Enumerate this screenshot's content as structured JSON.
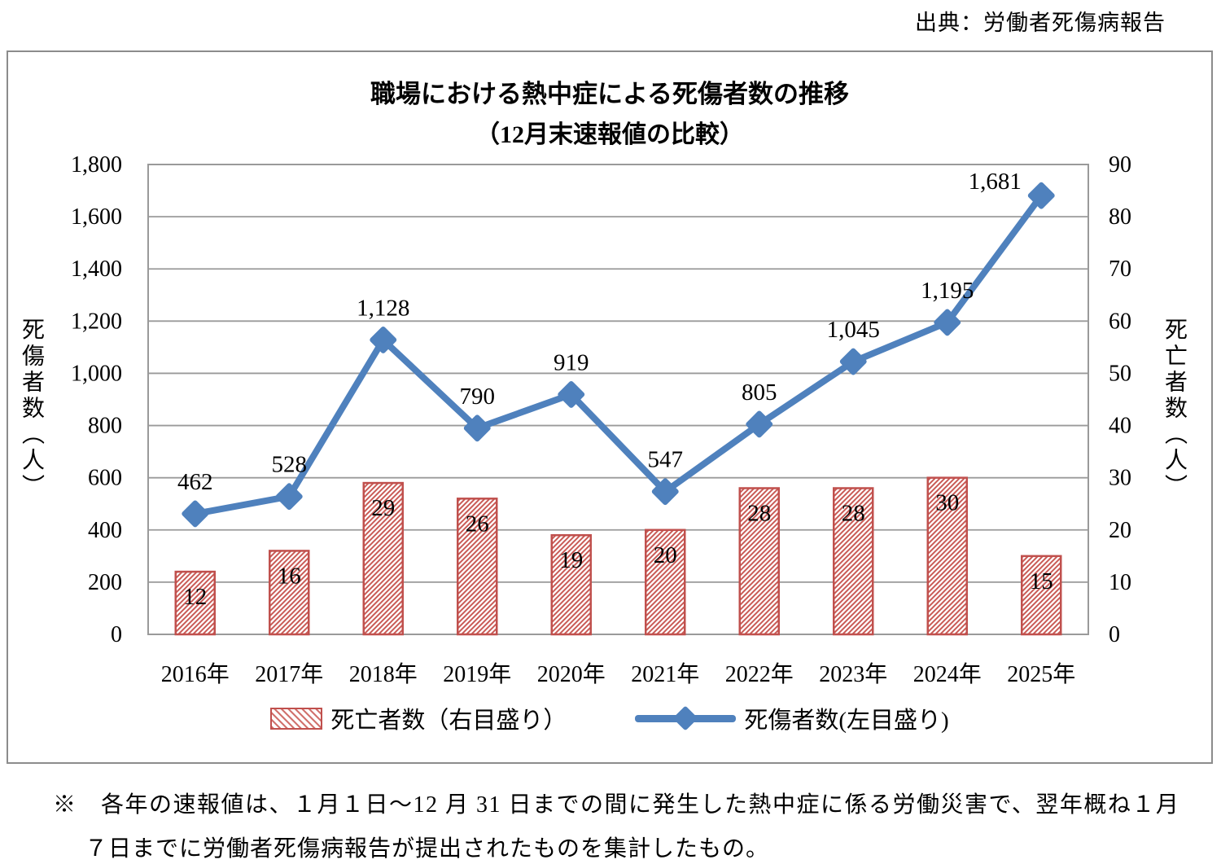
{
  "source": "出典：労働者死傷病報告",
  "title": {
    "line1": "職場における熱中症による死傷者数の推移",
    "line2": "（12月末速報値の比較）"
  },
  "chart_data": {
    "type": "combo_bar_line",
    "categories": [
      "2016年",
      "2017年",
      "2018年",
      "2019年",
      "2020年",
      "2021年",
      "2022年",
      "2023年",
      "2024年",
      "2025年"
    ],
    "series": [
      {
        "name": "死亡者数（右目盛り）",
        "type": "bar",
        "axis": "right",
        "values": [
          12,
          16,
          29,
          26,
          19,
          20,
          28,
          28,
          30,
          15
        ],
        "color": "#C0504D",
        "fill_pattern": "red-diagonal-hatch-on-white"
      },
      {
        "name": "死傷者数(左目盛り)",
        "type": "line",
        "axis": "left",
        "values": [
          462,
          528,
          1128,
          790,
          919,
          547,
          805,
          1045,
          1195,
          1681
        ],
        "labels": [
          "462",
          "528",
          "1,128",
          "790",
          "919",
          "547",
          "805",
          "1,045",
          "1,195",
          "1,681"
        ],
        "color": "#4F81BD",
        "marker": "diamond"
      }
    ],
    "left_axis": {
      "title": "死傷者数（人）",
      "min": 0,
      "max": 1800,
      "step": 200
    },
    "right_axis": {
      "title": "死亡者数（人）",
      "min": 0,
      "max": 90,
      "step": 10
    },
    "grid": true,
    "legend_position": "bottom"
  },
  "legend": {
    "bar_label": "死亡者数（右目盛り）",
    "line_label": "死傷者数(左目盛り)"
  },
  "footnote": {
    "line1": "※　各年の速報値は、１月１日～12 月 31 日までの間に発生した熱中症に係る労働災害で、翌年概ね１月",
    "line2": "７日までに労働者死傷病報告が提出されたものを集計したもの。"
  },
  "colors": {
    "line": "#4F81BD",
    "bar_border": "#C0504D",
    "hatch": "#C95A55",
    "grid": "#9a9a9a",
    "box_border": "#8C8C8C"
  }
}
